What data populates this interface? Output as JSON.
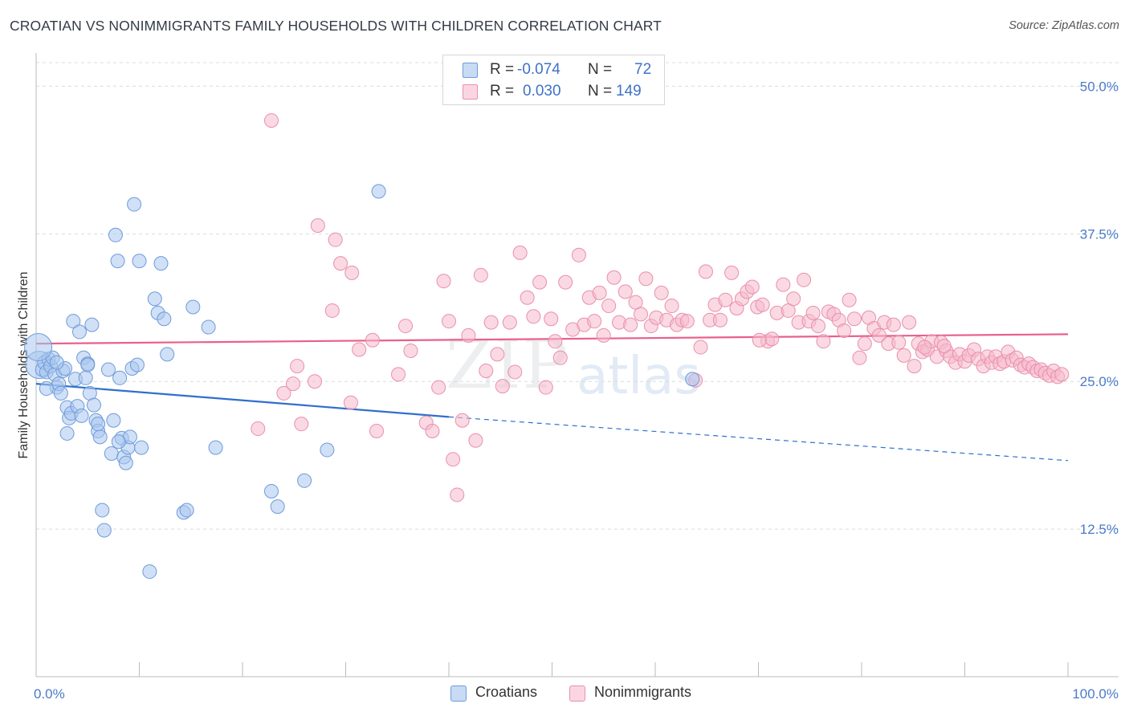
{
  "header": {
    "title": "CROATIAN VS NONIMMIGRANTS FAMILY HOUSEHOLDS WITH CHILDREN CORRELATION CHART",
    "source": "Source: ZipAtlas.com"
  },
  "watermark": {
    "zip": "ZIP",
    "atlas": "atlas"
  },
  "legend": {
    "rows": [
      {
        "name": "Croatians",
        "r_label": "R =",
        "r_value": "-0.074",
        "n_label": "N =",
        "n_value": "72",
        "color": "#a9c6ef"
      },
      {
        "name": "Nonimmigrants",
        "r_label": "R =",
        "r_value": "0.030",
        "n_label": "N =",
        "n_value": "149",
        "color": "#f5b9cc"
      }
    ]
  },
  "colors": {
    "blue_fill": "#a9c6ef",
    "blue_stroke": "#6f9bd9",
    "blue_line": "#2f6fce",
    "pink_fill": "#f5b9cc",
    "pink_stroke": "#e98fae",
    "pink_line": "#e8608c",
    "tick": "#4a7bc8",
    "grid": "#dcdcdc"
  },
  "chart_data": {
    "type": "scatter",
    "title": "CROATIAN VS NONIMMIGRANTS FAMILY HOUSEHOLDS WITH CHILDREN CORRELATION CHART",
    "xlabel": "",
    "ylabel": "Family Households with Children",
    "xlim": [
      0,
      100
    ],
    "ylim": [
      0,
      52
    ],
    "x_tick_labels": [
      "0.0%",
      "100.0%"
    ],
    "y_ticks": [
      12.5,
      25.0,
      37.5,
      50.0
    ],
    "y_tick_labels": [
      "12.5%",
      "25.0%",
      "37.5%",
      "50.0%"
    ],
    "grid": true,
    "legend_position": "top-center",
    "series": [
      {
        "name": "Croatians",
        "r": -0.074,
        "n": 72,
        "trend": {
          "x0": 0,
          "y0": 24.8,
          "x1": 40,
          "y1": 22.0,
          "dash_to_x": 100,
          "dash_to_y": 18.3
        },
        "points": [
          [
            0.3,
            26.4
          ],
          [
            0.6,
            26.0
          ],
          [
            0.8,
            26.6
          ],
          [
            1.0,
            25.8
          ],
          [
            1.2,
            26.9
          ],
          [
            1.4,
            26.3
          ],
          [
            1.6,
            27.0
          ],
          [
            1.8,
            25.6
          ],
          [
            2.0,
            24.5
          ],
          [
            2.2,
            24.8
          ],
          [
            2.4,
            24.0
          ],
          [
            2.6,
            25.9
          ],
          [
            2.8,
            26.1
          ],
          [
            3.0,
            22.8
          ],
          [
            3.2,
            21.9
          ],
          [
            3.4,
            22.3
          ],
          [
            3.6,
            30.1
          ],
          [
            3.8,
            25.2
          ],
          [
            4.0,
            22.9
          ],
          [
            4.2,
            29.2
          ],
          [
            4.4,
            22.1
          ],
          [
            4.6,
            27.0
          ],
          [
            4.8,
            25.3
          ],
          [
            5.0,
            26.5
          ],
          [
            5.2,
            24.0
          ],
          [
            5.4,
            29.8
          ],
          [
            5.6,
            23.0
          ],
          [
            5.8,
            21.7
          ],
          [
            6.0,
            20.8
          ],
          [
            6.2,
            20.3
          ],
          [
            6.4,
            14.1
          ],
          [
            6.6,
            12.4
          ],
          [
            7.0,
            26.0
          ],
          [
            7.3,
            18.9
          ],
          [
            7.5,
            21.7
          ],
          [
            7.7,
            37.4
          ],
          [
            7.9,
            35.2
          ],
          [
            8.1,
            25.3
          ],
          [
            8.3,
            20.2
          ],
          [
            8.5,
            18.6
          ],
          [
            8.7,
            18.1
          ],
          [
            8.9,
            19.4
          ],
          [
            9.1,
            20.3
          ],
          [
            9.3,
            26.1
          ],
          [
            9.5,
            40.0
          ],
          [
            9.8,
            26.4
          ],
          [
            10.0,
            35.2
          ],
          [
            10.2,
            19.4
          ],
          [
            11.0,
            8.9
          ],
          [
            11.5,
            32.0
          ],
          [
            11.8,
            30.8
          ],
          [
            12.1,
            35.0
          ],
          [
            12.4,
            30.3
          ],
          [
            12.7,
            27.3
          ],
          [
            14.3,
            13.9
          ],
          [
            14.6,
            14.1
          ],
          [
            15.2,
            31.3
          ],
          [
            16.7,
            29.6
          ],
          [
            17.4,
            19.4
          ],
          [
            22.8,
            15.7
          ],
          [
            23.4,
            14.4
          ],
          [
            26.0,
            16.6
          ],
          [
            28.2,
            19.2
          ],
          [
            33.2,
            41.1
          ],
          [
            1.0,
            24.4
          ],
          [
            2.0,
            26.6
          ],
          [
            3.0,
            20.6
          ],
          [
            5.0,
            26.4
          ],
          [
            6.0,
            21.4
          ],
          [
            8.0,
            19.9
          ],
          [
            63.6,
            25.2
          ],
          [
            0.2,
            27.9
          ]
        ]
      },
      {
        "name": "Nonimmigrants",
        "r": 0.03,
        "n": 149,
        "trend": {
          "x0": 0,
          "y0": 28.2,
          "x1": 100,
          "y1": 29.0
        },
        "points": [
          [
            22.8,
            47.1
          ],
          [
            27.3,
            38.2
          ],
          [
            29.0,
            37.0
          ],
          [
            29.5,
            35.0
          ],
          [
            30.6,
            34.2
          ],
          [
            31.3,
            27.7
          ],
          [
            28.7,
            31.0
          ],
          [
            25.3,
            26.3
          ],
          [
            24.9,
            24.8
          ],
          [
            24.0,
            24.0
          ],
          [
            21.5,
            21.0
          ],
          [
            25.7,
            21.4
          ],
          [
            27.0,
            25.0
          ],
          [
            30.5,
            23.2
          ],
          [
            32.6,
            28.5
          ],
          [
            33.0,
            20.8
          ],
          [
            35.1,
            25.6
          ],
          [
            35.8,
            29.7
          ],
          [
            36.3,
            27.6
          ],
          [
            37.8,
            21.5
          ],
          [
            38.4,
            20.8
          ],
          [
            39.0,
            24.5
          ],
          [
            39.5,
            33.5
          ],
          [
            40.0,
            30.1
          ],
          [
            40.4,
            18.4
          ],
          [
            40.8,
            15.4
          ],
          [
            41.3,
            21.7
          ],
          [
            41.9,
            28.9
          ],
          [
            42.6,
            20.0
          ],
          [
            43.1,
            34.0
          ],
          [
            43.6,
            25.9
          ],
          [
            44.1,
            30.0
          ],
          [
            44.7,
            27.3
          ],
          [
            45.2,
            24.6
          ],
          [
            45.9,
            30.0
          ],
          [
            46.4,
            25.8
          ],
          [
            46.9,
            35.9
          ],
          [
            47.6,
            32.1
          ],
          [
            48.2,
            30.5
          ],
          [
            48.8,
            33.4
          ],
          [
            49.4,
            24.5
          ],
          [
            49.9,
            30.3
          ],
          [
            50.3,
            28.4
          ],
          [
            50.8,
            27.0
          ],
          [
            51.3,
            33.4
          ],
          [
            52.0,
            29.4
          ],
          [
            52.6,
            35.7
          ],
          [
            53.1,
            29.8
          ],
          [
            53.6,
            32.1
          ],
          [
            54.1,
            30.1
          ],
          [
            54.6,
            32.5
          ],
          [
            55.0,
            28.9
          ],
          [
            55.5,
            31.4
          ],
          [
            56.0,
            33.8
          ],
          [
            56.5,
            30.0
          ],
          [
            57.1,
            32.6
          ],
          [
            57.6,
            29.8
          ],
          [
            58.1,
            31.7
          ],
          [
            58.6,
            30.7
          ],
          [
            59.1,
            33.7
          ],
          [
            59.6,
            29.7
          ],
          [
            60.1,
            30.4
          ],
          [
            60.6,
            32.5
          ],
          [
            61.1,
            30.2
          ],
          [
            61.6,
            31.4
          ],
          [
            62.1,
            29.8
          ],
          [
            62.6,
            30.2
          ],
          [
            63.1,
            30.1
          ],
          [
            63.9,
            25.1
          ],
          [
            64.4,
            27.9
          ],
          [
            64.9,
            34.3
          ],
          [
            65.3,
            30.2
          ],
          [
            65.8,
            31.5
          ],
          [
            66.3,
            30.2
          ],
          [
            66.8,
            31.9
          ],
          [
            67.4,
            34.2
          ],
          [
            67.9,
            31.2
          ],
          [
            68.4,
            32.0
          ],
          [
            68.9,
            32.6
          ],
          [
            69.4,
            33.0
          ],
          [
            69.9,
            31.3
          ],
          [
            70.4,
            31.5
          ],
          [
            70.9,
            28.4
          ],
          [
            71.3,
            28.6
          ],
          [
            71.8,
            30.8
          ],
          [
            72.4,
            33.2
          ],
          [
            72.9,
            31.0
          ],
          [
            73.4,
            32.0
          ],
          [
            73.9,
            30.0
          ],
          [
            74.4,
            33.6
          ],
          [
            74.9,
            30.1
          ],
          [
            75.3,
            30.8
          ],
          [
            75.8,
            29.7
          ],
          [
            76.3,
            28.4
          ],
          [
            76.8,
            30.9
          ],
          [
            77.3,
            30.7
          ],
          [
            77.8,
            30.2
          ],
          [
            78.3,
            29.3
          ],
          [
            78.8,
            31.9
          ],
          [
            79.3,
            30.3
          ],
          [
            79.8,
            27.0
          ],
          [
            80.3,
            28.2
          ],
          [
            80.7,
            30.4
          ],
          [
            81.2,
            29.5
          ],
          [
            81.7,
            28.9
          ],
          [
            82.2,
            30.0
          ],
          [
            82.6,
            28.2
          ],
          [
            83.1,
            29.8
          ],
          [
            83.6,
            28.3
          ],
          [
            84.1,
            27.2
          ],
          [
            84.6,
            30.0
          ],
          [
            85.1,
            26.3
          ],
          [
            85.5,
            28.2
          ],
          [
            85.9,
            27.5
          ],
          [
            86.4,
            27.7
          ],
          [
            86.8,
            28.4
          ],
          [
            87.3,
            27.1
          ],
          [
            87.7,
            28.3
          ],
          [
            88.2,
            27.6
          ],
          [
            88.6,
            27.1
          ],
          [
            89.1,
            26.6
          ],
          [
            89.5,
            27.3
          ],
          [
            90.0,
            26.7
          ],
          [
            90.4,
            27.2
          ],
          [
            90.9,
            27.7
          ],
          [
            91.3,
            26.9
          ],
          [
            91.8,
            26.3
          ],
          [
            92.2,
            27.1
          ],
          [
            92.6,
            26.6
          ],
          [
            93.0,
            27.1
          ],
          [
            93.4,
            26.5
          ],
          [
            93.8,
            26.7
          ],
          [
            94.2,
            27.5
          ],
          [
            94.6,
            26.8
          ],
          [
            95.0,
            27.0
          ],
          [
            95.4,
            26.4
          ],
          [
            95.8,
            26.2
          ],
          [
            96.2,
            26.5
          ],
          [
            96.6,
            26.2
          ],
          [
            97.0,
            25.9
          ],
          [
            97.4,
            26.0
          ],
          [
            97.8,
            25.7
          ],
          [
            98.2,
            25.5
          ],
          [
            98.6,
            25.9
          ],
          [
            99.0,
            25.4
          ],
          [
            99.4,
            25.6
          ],
          [
            88.0,
            28.0
          ],
          [
            86.1,
            27.9
          ],
          [
            70.1,
            28.5
          ]
        ]
      }
    ]
  }
}
